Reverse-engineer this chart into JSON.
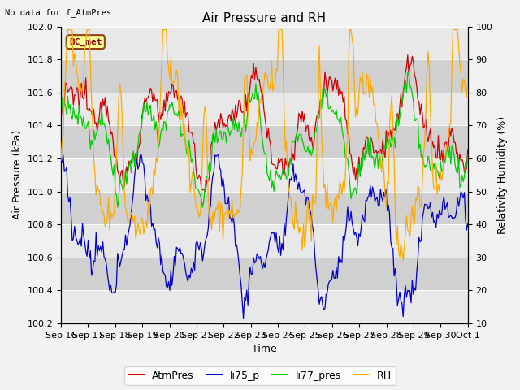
{
  "title": "Air Pressure and RH",
  "top_left_text": "No data for f_AtmPres",
  "annotation_box": "BC_met",
  "ylabel_left": "Air Pressure (kPa)",
  "ylabel_right": "Relativity Humidity (%)",
  "xlabel": "Time",
  "ylim_left": [
    100.2,
    102.0
  ],
  "ylim_right": [
    10,
    100
  ],
  "yticks_left": [
    100.2,
    100.4,
    100.6,
    100.8,
    101.0,
    101.2,
    101.4,
    101.6,
    101.8,
    102.0
  ],
  "yticks_right": [
    10,
    20,
    30,
    40,
    50,
    60,
    70,
    80,
    90,
    100
  ],
  "xtick_labels": [
    "Sep 16",
    "Sep 17",
    "Sep 18",
    "Sep 19",
    "Sep 20",
    "Sep 21",
    "Sep 22",
    "Sep 23",
    "Sep 24",
    "Sep 25",
    "Sep 26",
    "Sep 27",
    "Sep 28",
    "Sep 29",
    "Sep 30",
    "Oct 1"
  ],
  "legend": [
    {
      "label": "AtmPres",
      "color": "#cc0000"
    },
    {
      "label": "li75_p",
      "color": "#0000cc"
    },
    {
      "label": "li77_pres",
      "color": "#00cc00"
    },
    {
      "label": "RH",
      "color": "#ffaa00"
    }
  ],
  "plot_bg_color": "#d8d8d8",
  "fig_bg_color": "#f2f2f2",
  "band_light": "#e8e8e8",
  "band_dark": "#d0d0d0",
  "title_fontsize": 11,
  "axis_label_fontsize": 9,
  "tick_fontsize": 8,
  "legend_fontsize": 9
}
